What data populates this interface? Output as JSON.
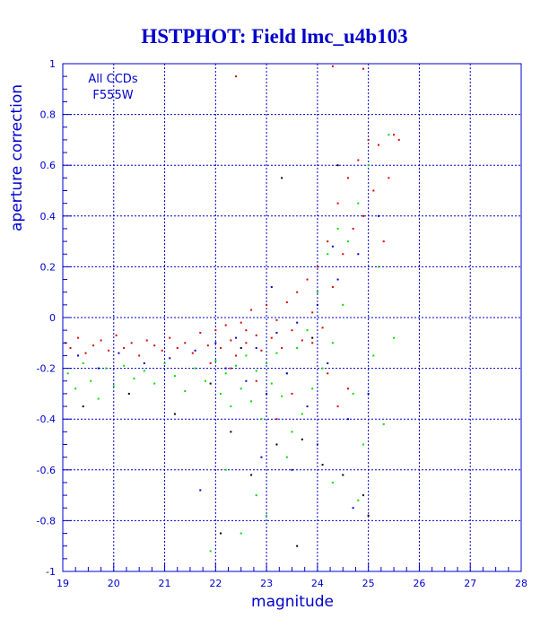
{
  "chart_data": {
    "type": "scatter",
    "title": "HSTPHOT: Field lmc_u4b103",
    "xlabel": "magnitude",
    "ylabel": "aperture correction",
    "xlim": [
      19,
      28
    ],
    "ylim": [
      -1,
      1
    ],
    "xticks": [
      "19",
      "20",
      "21",
      "22",
      "23",
      "24",
      "25",
      "26",
      "27",
      "28"
    ],
    "yticks": [
      "1",
      "0.8",
      "0.6",
      "0.4",
      "0.2",
      "0",
      "-0.2",
      "-0.4",
      "-0.6",
      "-0.8",
      "-1"
    ],
    "grid": true,
    "annotations": [
      "All CCDs",
      "F555W"
    ],
    "colors": {
      "axis": "#0000cc",
      "title": "#0000cc",
      "grid": "#0000cc",
      "red_series": "#dd0000",
      "green_series": "#00dd00",
      "blue_series": "#0000cc",
      "black_series": "#000000"
    },
    "series": [
      {
        "color": "red",
        "points": [
          [
            19.05,
            -0.1
          ],
          [
            19.15,
            -0.12
          ],
          [
            19.3,
            -0.08
          ],
          [
            19.45,
            -0.14
          ],
          [
            19.6,
            -0.11
          ],
          [
            19.75,
            -0.09
          ],
          [
            19.9,
            -0.13
          ],
          [
            20.05,
            -0.07
          ],
          [
            20.2,
            -0.12
          ],
          [
            20.35,
            -0.1
          ],
          [
            20.5,
            -0.15
          ],
          [
            20.65,
            -0.09
          ],
          [
            20.8,
            -0.11
          ],
          [
            20.95,
            -0.13
          ],
          [
            21.1,
            -0.08
          ],
          [
            21.25,
            -0.12
          ],
          [
            21.4,
            -0.1
          ],
          [
            21.55,
            -0.14
          ],
          [
            21.7,
            -0.06
          ],
          [
            21.85,
            -0.11
          ],
          [
            22.0,
            -0.05
          ],
          [
            22.1,
            -0.12
          ],
          [
            22.2,
            -0.03
          ],
          [
            22.3,
            -0.09
          ],
          [
            22.4,
            -0.15
          ],
          [
            22.5,
            -0.02
          ],
          [
            22.6,
            -0.1
          ],
          [
            22.7,
            0.03
          ],
          [
            22.8,
            -0.07
          ],
          [
            22.9,
            -0.13
          ],
          [
            23.0,
            0.05
          ],
          [
            23.1,
            -0.08
          ],
          [
            23.2,
            -0.01
          ],
          [
            23.3,
            -0.12
          ],
          [
            23.4,
            0.06
          ],
          [
            23.5,
            -0.05
          ],
          [
            23.6,
            0.1
          ],
          [
            23.7,
            -0.09
          ],
          [
            23.8,
            0.15
          ],
          [
            23.9,
            0.02
          ],
          [
            24.0,
            0.2
          ],
          [
            24.1,
            -0.04
          ],
          [
            24.2,
            0.3
          ],
          [
            24.3,
            0.12
          ],
          [
            24.4,
            0.45
          ],
          [
            24.5,
            0.25
          ],
          [
            24.6,
            0.55
          ],
          [
            24.7,
            0.35
          ],
          [
            24.8,
            0.62
          ],
          [
            24.9,
            0.4
          ],
          [
            25.0,
            0.7
          ],
          [
            25.1,
            0.5
          ],
          [
            25.2,
            0.68
          ],
          [
            25.3,
            0.3
          ],
          [
            25.4,
            0.55
          ],
          [
            25.5,
            0.72
          ],
          [
            25.6,
            0.7
          ],
          [
            24.3,
            0.99
          ],
          [
            24.9,
            0.98
          ],
          [
            22.4,
            0.95
          ],
          [
            22.3,
            -0.2
          ],
          [
            22.8,
            -0.25
          ],
          [
            23.5,
            -0.3
          ],
          [
            24.2,
            -0.22
          ],
          [
            23.2,
            -0.4
          ],
          [
            24.6,
            -0.28
          ],
          [
            21.9,
            -0.18
          ],
          [
            22.6,
            -0.05
          ],
          [
            23.9,
            -0.1
          ],
          [
            24.4,
            -0.35
          ]
        ]
      },
      {
        "color": "green",
        "points": [
          [
            19.1,
            -0.22
          ],
          [
            19.25,
            -0.28
          ],
          [
            19.4,
            -0.18
          ],
          [
            19.55,
            -0.25
          ],
          [
            19.7,
            -0.32
          ],
          [
            19.85,
            -0.2
          ],
          [
            20.0,
            -0.27
          ],
          [
            20.2,
            -0.19
          ],
          [
            20.4,
            -0.24
          ],
          [
            20.6,
            -0.21
          ],
          [
            20.8,
            -0.26
          ],
          [
            21.0,
            -0.18
          ],
          [
            21.2,
            -0.23
          ],
          [
            21.4,
            -0.29
          ],
          [
            21.6,
            -0.2
          ],
          [
            21.8,
            -0.25
          ],
          [
            22.0,
            -0.17
          ],
          [
            22.1,
            -0.3
          ],
          [
            22.2,
            -0.22
          ],
          [
            22.3,
            -0.35
          ],
          [
            22.4,
            -0.19
          ],
          [
            22.5,
            -0.28
          ],
          [
            22.6,
            -0.15
          ],
          [
            22.7,
            -0.33
          ],
          [
            22.8,
            -0.21
          ],
          [
            22.9,
            -0.4
          ],
          [
            23.0,
            -0.18
          ],
          [
            23.1,
            -0.26
          ],
          [
            23.2,
            -0.14
          ],
          [
            23.3,
            -0.31
          ],
          [
            23.4,
            -0.22
          ],
          [
            23.5,
            -0.45
          ],
          [
            23.6,
            -0.12
          ],
          [
            23.7,
            -0.38
          ],
          [
            23.8,
            -0.05
          ],
          [
            23.9,
            -0.28
          ],
          [
            24.0,
            0.1
          ],
          [
            24.1,
            -0.2
          ],
          [
            24.2,
            0.25
          ],
          [
            24.3,
            -0.1
          ],
          [
            24.4,
            0.35
          ],
          [
            24.5,
            0.05
          ],
          [
            24.6,
            0.3
          ],
          [
            24.7,
            -0.3
          ],
          [
            24.8,
            0.45
          ],
          [
            24.9,
            -0.5
          ],
          [
            25.0,
            0.6
          ],
          [
            25.1,
            -0.15
          ],
          [
            25.2,
            0.2
          ],
          [
            25.3,
            -0.42
          ],
          [
            25.4,
            0.72
          ],
          [
            25.5,
            -0.08
          ],
          [
            22.2,
            -0.6
          ],
          [
            22.8,
            -0.7
          ],
          [
            23.4,
            -0.55
          ],
          [
            21.9,
            -0.92
          ],
          [
            22.5,
            -0.85
          ],
          [
            24.3,
            -0.65
          ],
          [
            23.0,
            -0.78
          ],
          [
            24.8,
            -0.72
          ]
        ]
      },
      {
        "color": "blue",
        "points": [
          [
            19.3,
            -0.15
          ],
          [
            19.7,
            -0.2
          ],
          [
            20.1,
            -0.14
          ],
          [
            20.6,
            -0.18
          ],
          [
            21.1,
            -0.16
          ],
          [
            21.6,
            -0.13
          ],
          [
            22.0,
            -0.1
          ],
          [
            22.2,
            -0.2
          ],
          [
            22.4,
            -0.08
          ],
          [
            22.6,
            -0.25
          ],
          [
            22.8,
            -0.12
          ],
          [
            23.0,
            -0.3
          ],
          [
            23.2,
            -0.06
          ],
          [
            23.4,
            -0.22
          ],
          [
            23.6,
            -0.02
          ],
          [
            23.8,
            -0.35
          ],
          [
            24.0,
            0.05
          ],
          [
            24.2,
            -0.18
          ],
          [
            24.4,
            0.15
          ],
          [
            24.6,
            -0.4
          ],
          [
            24.8,
            0.25
          ],
          [
            25.0,
            -0.3
          ],
          [
            25.2,
            0.4
          ],
          [
            23.1,
            0.12
          ],
          [
            24.3,
            0.28
          ],
          [
            22.9,
            -0.55
          ],
          [
            24.0,
            -0.5
          ],
          [
            23.5,
            -0.6
          ],
          [
            24.7,
            -0.75
          ],
          [
            21.7,
            -0.68
          ]
        ]
      },
      {
        "color": "black",
        "points": [
          [
            19.4,
            -0.35
          ],
          [
            20.3,
            -0.3
          ],
          [
            21.2,
            -0.38
          ],
          [
            21.9,
            -0.26
          ],
          [
            22.3,
            -0.45
          ],
          [
            22.7,
            -0.62
          ],
          [
            23.2,
            -0.5
          ],
          [
            23.7,
            -0.48
          ],
          [
            24.1,
            -0.58
          ],
          [
            24.5,
            -0.62
          ],
          [
            24.9,
            -0.7
          ],
          [
            25.0,
            -0.78
          ],
          [
            23.3,
            0.55
          ],
          [
            24.4,
            0.6
          ],
          [
            22.5,
            -0.12
          ],
          [
            23.9,
            -0.08
          ],
          [
            22.1,
            -0.85
          ],
          [
            23.6,
            -0.9
          ]
        ]
      }
    ]
  }
}
